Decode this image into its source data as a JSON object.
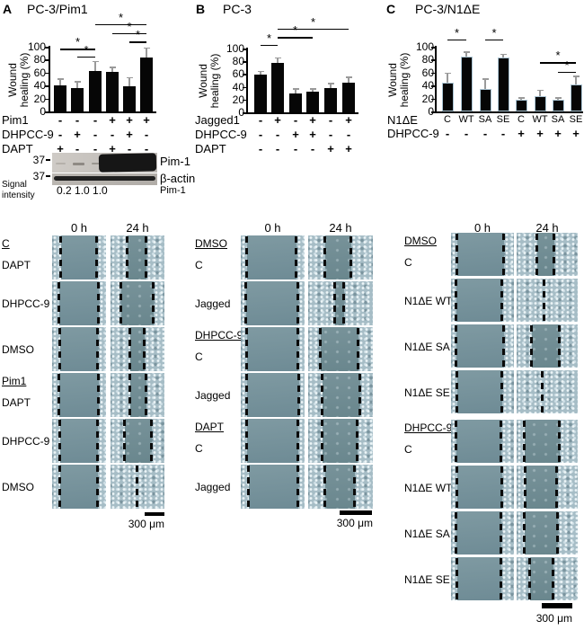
{
  "panels": [
    {
      "letter": "A",
      "title": "PC-3/Pim1"
    },
    {
      "letter": "B",
      "title": "PC-3"
    },
    {
      "letter": "C",
      "title": "PC-3/N1ΔE"
    }
  ],
  "chart_data": [
    {
      "type": "bar",
      "title": "PC-3/Pim1",
      "ylabel": "Wound healing (%)",
      "ylabel_lines": [
        "Wound",
        "healing (%)"
      ],
      "ylim": [
        0,
        100
      ],
      "yticks": [
        0,
        20,
        40,
        60,
        80,
        100
      ],
      "values": [
        40,
        36,
        63,
        61,
        39,
        83
      ],
      "errors": [
        11,
        11,
        15,
        8,
        14,
        16
      ],
      "conditions": {
        "rows": [
          {
            "label": "Pim1",
            "cells": [
              "-",
              "-",
              "-",
              "+",
              "+",
              "+"
            ]
          },
          {
            "label": "DHPCC-9",
            "cells": [
              "-",
              "+",
              "-",
              "-",
              "+",
              "-"
            ]
          },
          {
            "label": "DAPT",
            "cells": [
              "+",
              "-",
              "-",
              "+",
              "-",
              "-"
            ]
          }
        ]
      },
      "significance": [
        {
          "from": 0,
          "to": 2,
          "level": 97,
          "label": "*"
        },
        {
          "from": 1,
          "to": 2,
          "level": 85,
          "label": "*"
        },
        {
          "from": 2,
          "to": 5,
          "level": 135,
          "label": "*"
        },
        {
          "from": 3,
          "to": 5,
          "level": 121,
          "label": "*"
        },
        {
          "from": 4,
          "to": 5,
          "level": 108,
          "label": "*"
        }
      ]
    },
    {
      "type": "bar",
      "title": "PC-3",
      "ylabel": "Wound healing (%)",
      "ylabel_lines": [
        "Wound",
        "healing (%)"
      ],
      "ylim": [
        0,
        100
      ],
      "yticks": [
        0,
        20,
        40,
        60,
        80,
        100
      ],
      "values": [
        59,
        78,
        30,
        32,
        38,
        47
      ],
      "errors": [
        6,
        8,
        8,
        6,
        8,
        9
      ],
      "conditions": {
        "rows": [
          {
            "label": "Jagged1",
            "cells": [
              "-",
              "+",
              "-",
              "+",
              "-",
              "+"
            ]
          },
          {
            "label": "DHPCC-9",
            "cells": [
              "-",
              "-",
              "+",
              "+",
              "-",
              "-"
            ]
          },
          {
            "label": "DAPT",
            "cells": [
              "-",
              "-",
              "-",
              "-",
              "+",
              "+"
            ]
          }
        ]
      },
      "significance": [
        {
          "from": 0,
          "to": 1,
          "level": 106,
          "label": "*"
        },
        {
          "from": 1,
          "to": 3,
          "level": 118,
          "label": "*"
        },
        {
          "from": 1,
          "to": 5,
          "level": 131,
          "label": "*"
        }
      ]
    },
    {
      "type": "bar",
      "title": "PC-3/N1ΔE",
      "ylabel": "Wound healing (%)",
      "ylabel_lines": [
        "Wound",
        "healing (%)"
      ],
      "ylim": [
        0,
        100
      ],
      "yticks": [
        0,
        20,
        40,
        60,
        80,
        100
      ],
      "values": [
        44,
        85,
        35,
        83,
        18,
        24,
        18,
        42
      ],
      "errors": [
        16,
        8,
        16,
        6,
        4,
        10,
        4,
        13
      ],
      "conditions": {
        "rows": [
          {
            "label": "N1ΔE",
            "cells": [
              "C",
              "WT",
              "SA",
              "SE",
              "C",
              "WT",
              "SA",
              "SE"
            ]
          },
          {
            "label": "DHPCC-9",
            "cells": [
              "-",
              "-",
              "-",
              "-",
              "+",
              "+",
              "+",
              "+"
            ]
          }
        ]
      },
      "significance": [
        {
          "from": 0,
          "to": 1,
          "level": 111,
          "label": "*"
        },
        {
          "from": 2,
          "to": 3,
          "level": 111,
          "label": "*"
        },
        {
          "from": 5,
          "to": 7,
          "level": 76,
          "label": "*"
        },
        {
          "from": 6,
          "to": 7,
          "level": 61,
          "label": "*"
        }
      ]
    }
  ],
  "blot": {
    "marker_top": "37",
    "marker_bottom": "37",
    "band_top_label": "Pim-1",
    "band_bottom_label": "β-actin",
    "signal_label_lines": [
      "Signal",
      "intensity"
    ],
    "signal_values": "0.2 1.0 1.0",
    "signal_band": "Pim-1"
  },
  "microscopy": {
    "col_headers": [
      "0 h",
      "24 h"
    ],
    "scale_label": "300 μm",
    "groups": [
      {
        "rows": [
          {
            "group": "C",
            "label": "DAPT",
            "gap0": [
              16,
              84
            ],
            "gap24": [
              32,
              66
            ]
          },
          {
            "label": "DHPCC-9",
            "gap0": [
              13,
              87
            ],
            "gap24": [
              20,
              80
            ]
          },
          {
            "label": "DMSO",
            "gap0": [
              15,
              85
            ],
            "gap24": [
              36,
              63
            ]
          },
          {
            "group": "Pim1",
            "label": "DAPT",
            "gap0": [
              13,
              87
            ],
            "gap24": [
              36,
              66
            ]
          },
          {
            "label": "DHPCC-9",
            "gap0": [
              15,
              85
            ],
            "gap24": [
              26,
              76
            ]
          },
          {
            "label": "DMSO",
            "gap0": [
              15,
              85
            ],
            "gap24": [
              49,
              51
            ]
          }
        ]
      },
      {
        "rows": [
          {
            "group": "DMSO",
            "label": "C",
            "gap0": [
              10,
              88
            ],
            "gap24": [
              26,
              66
            ]
          },
          {
            "label": "Jagged",
            "gap0": [
              9,
              90
            ],
            "gap24": [
              42,
              56
            ]
          },
          {
            "group": "DHPCC-9",
            "label": "C",
            "gap0": [
              10,
              90
            ],
            "gap24": [
              20,
              78
            ]
          },
          {
            "label": "Jagged",
            "gap0": [
              10,
              91
            ],
            "gap24": [
              22,
              80
            ]
          },
          {
            "group": "DAPT",
            "label": "C",
            "gap0": [
              10,
              90
            ],
            "gap24": [
              22,
              76
            ]
          },
          {
            "label": "Jagged",
            "gap0": [
              12,
              90
            ],
            "gap24": [
              26,
              72
            ]
          }
        ]
      },
      {
        "rows": [
          {
            "group": "DMSO",
            "label": "C",
            "gap0": [
              10,
              84
            ],
            "gap24": [
              34,
              62
            ]
          },
          {
            "label": "N1ΔE WT",
            "gap0": [
              9,
              81
            ],
            "gap24": [
              44,
              46
            ]
          },
          {
            "label": "N1ΔE SA",
            "gap0": [
              8,
              84
            ],
            "gap24": [
              25,
              70
            ]
          },
          {
            "label": "N1ΔE SE",
            "gap0": [
              10,
              82
            ],
            "gap24": [
              42,
              44
            ]
          },
          {
            "group": "DHPCC-9",
            "label": "C",
            "gap0": [
              9,
              80
            ],
            "gap24": [
              13,
              70
            ]
          },
          {
            "label": "N1ΔE WT",
            "gap0": [
              10,
              82
            ],
            "gap24": [
              15,
              66
            ]
          },
          {
            "label": "N1ΔE SA",
            "gap0": [
              8,
              80
            ],
            "gap24": [
              13,
              68
            ]
          },
          {
            "label": "N1ΔE SE",
            "gap0": [
              10,
              80
            ],
            "gap24": [
              22,
              60
            ]
          }
        ]
      }
    ]
  },
  "colors": {
    "bar": "#060606",
    "error_bar": "#9a9a9a",
    "wound_area": "#7b949c",
    "cell_texture": "#a6bdc6"
  }
}
